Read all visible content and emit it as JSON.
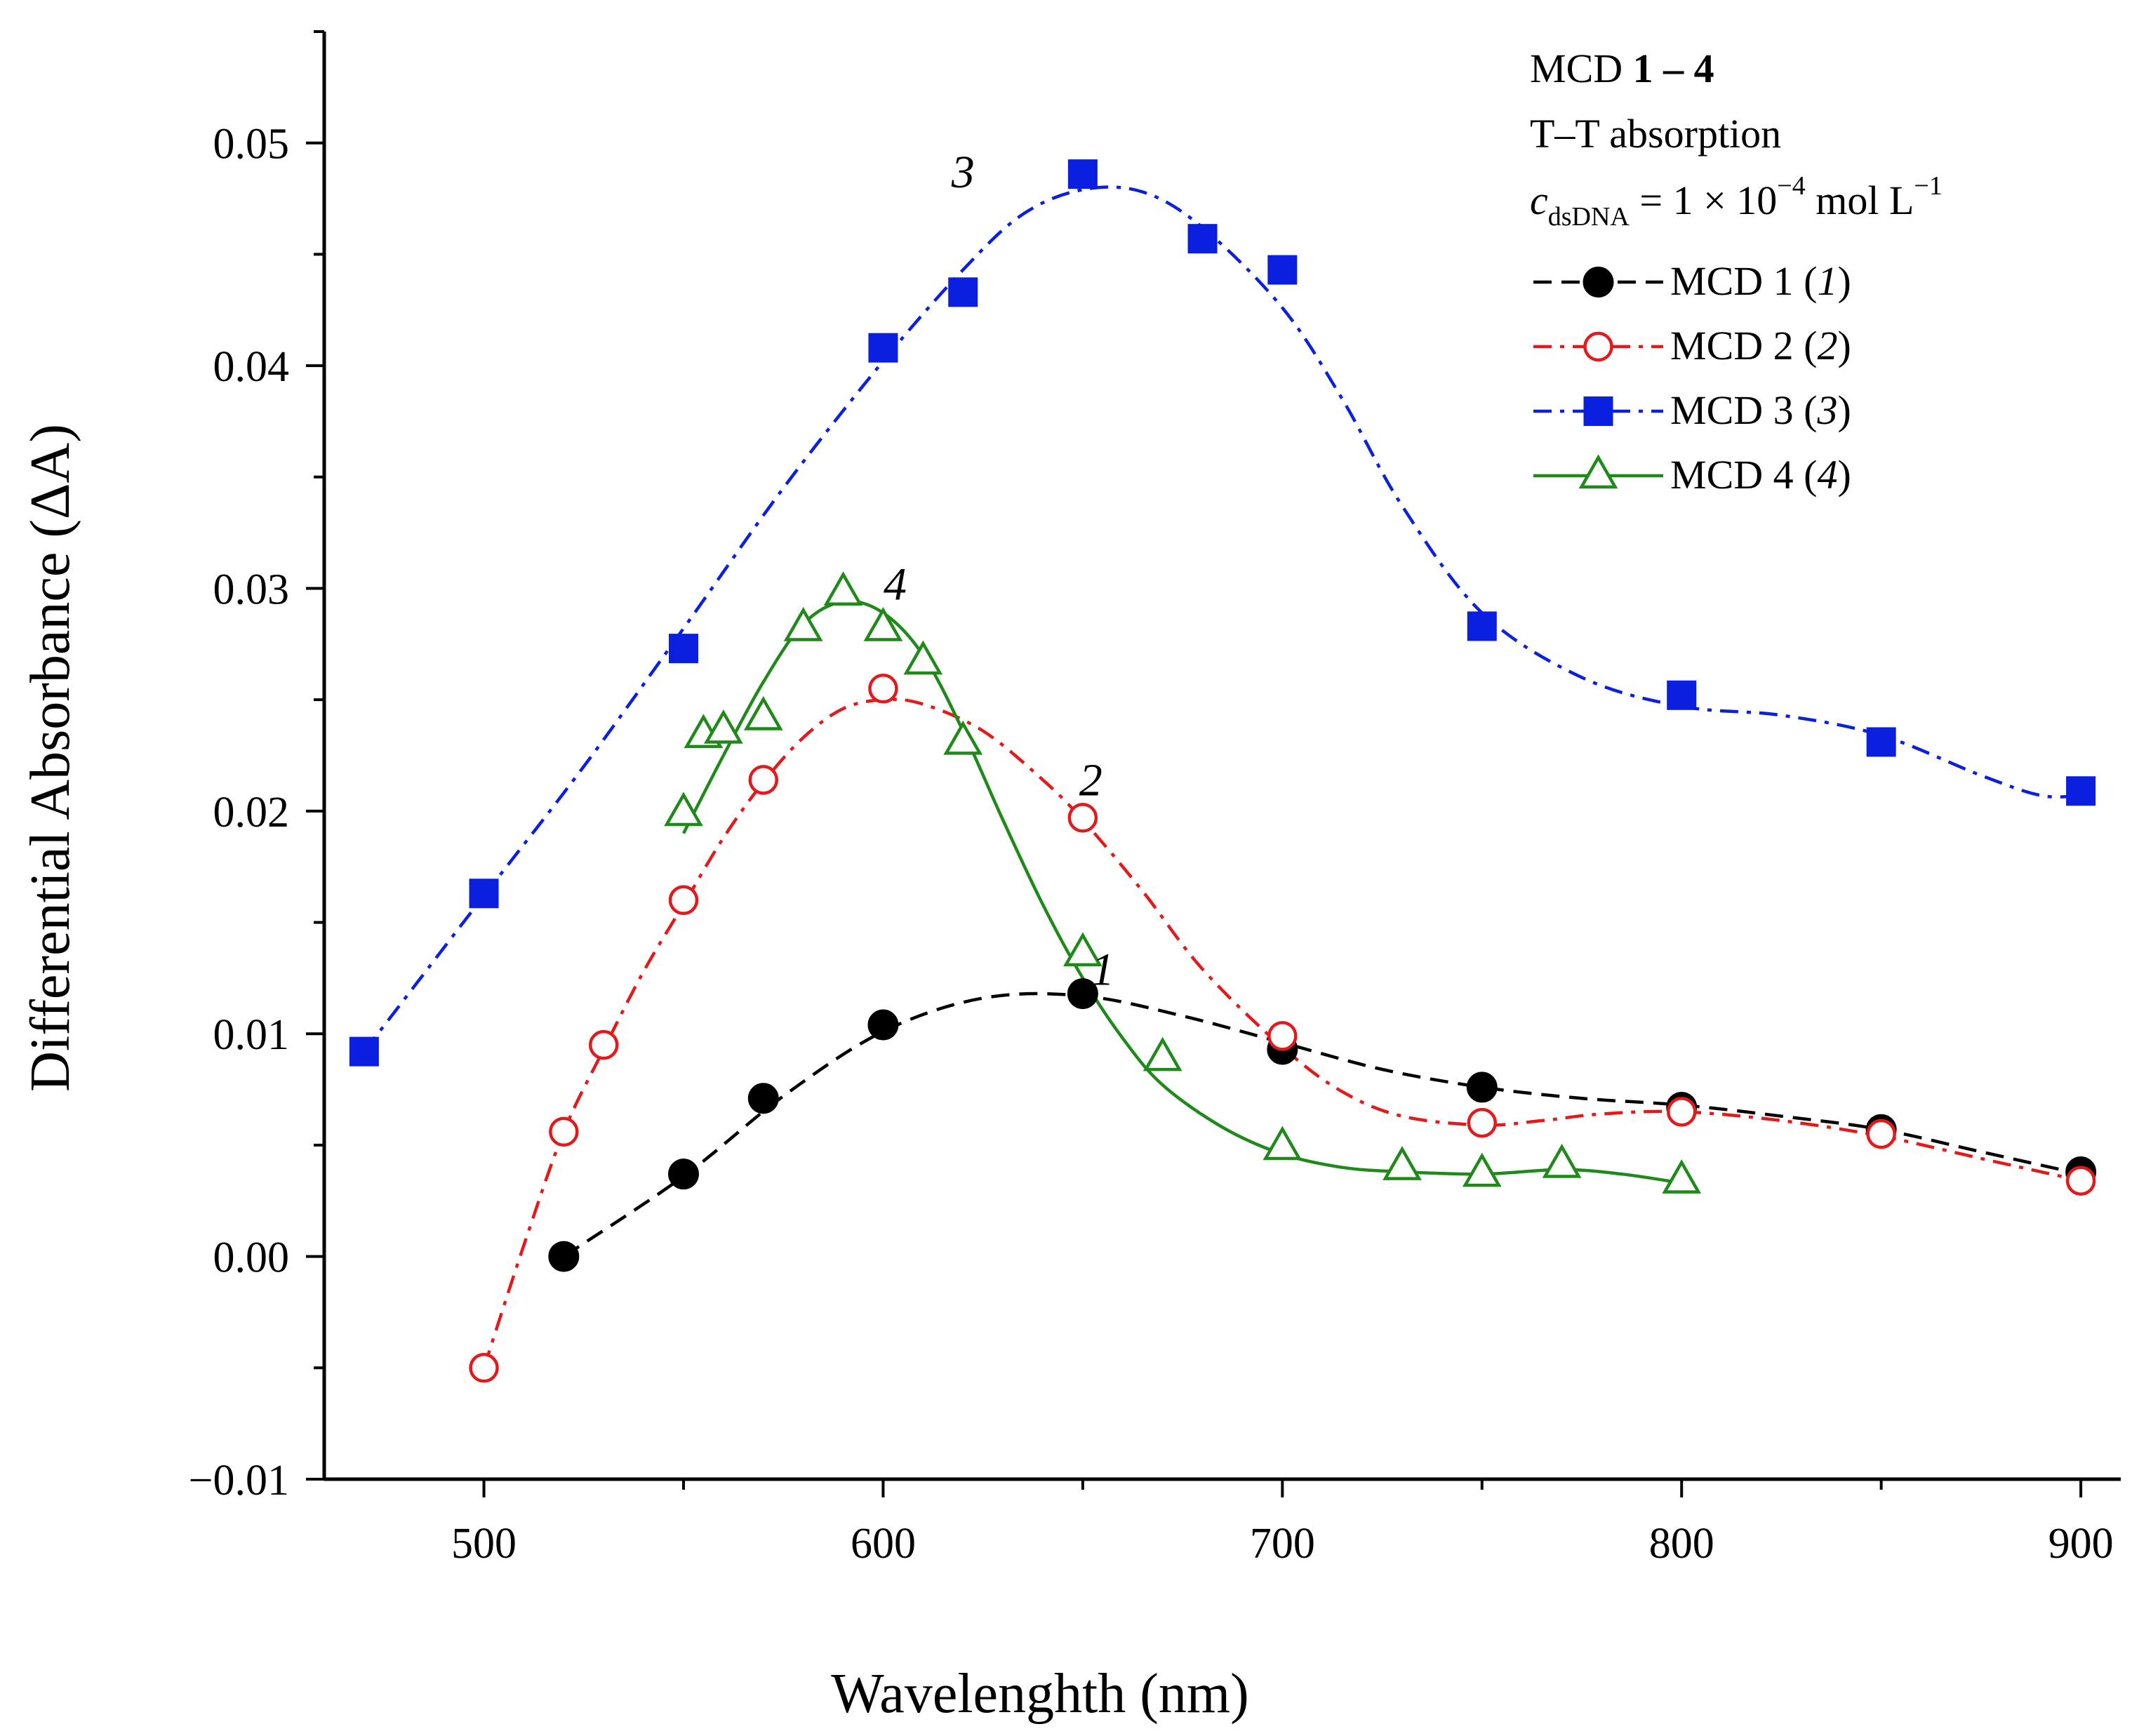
{
  "chart_data": {
    "type": "line",
    "title": "",
    "xlabel": "Wavelenghth (nm)",
    "ylabel": "Differential Absorbance (ΔA)",
    "xlim": [
      460,
      910
    ],
    "ylim": [
      -0.01,
      0.055
    ],
    "x_ticks": [
      500,
      600,
      700,
      800,
      900
    ],
    "x_tick_labels": [
      "500",
      "600",
      "700",
      "800",
      "900"
    ],
    "y_ticks": [
      -0.01,
      0.0,
      0.01,
      0.02,
      0.03,
      0.04,
      0.05
    ],
    "y_tick_labels": [
      "−0.01",
      "0.00",
      "0.01",
      "0.02",
      "0.03",
      "0.04",
      "0.05"
    ],
    "grid": false,
    "legend_position": "top-right",
    "legend_header": {
      "line1_prefix": "MCD ",
      "line1_bold": "1 – 4",
      "line2": "T–T absorption",
      "line3_c": "c",
      "line3_sub": "dsDNA",
      "line3_mid": " = 1 × 10",
      "line3_exp": "−4",
      "line3_unit": " mol L",
      "line3_unit_exp": "−1"
    },
    "series": [
      {
        "name": "MCD 1",
        "legend_name": "MCD 1 (",
        "legend_italic": "1",
        "legend_close": ")",
        "label": "1",
        "label_at": [
          655,
          0.0122
        ],
        "color": "#000000",
        "dash": "dashed",
        "marker": "filled-circle",
        "x": [
          520,
          550,
          570,
          600,
          650,
          700,
          750,
          800,
          850,
          900
        ],
        "y": [
          0.0,
          0.0037,
          0.0071,
          0.0104,
          0.0118,
          0.0093,
          0.0076,
          0.0067,
          0.0057,
          0.0038
        ],
        "curve": [
          [
            520,
            0.0
          ],
          [
            550,
            0.0036
          ],
          [
            575,
            0.0072
          ],
          [
            600,
            0.0101
          ],
          [
            625,
            0.0116
          ],
          [
            650,
            0.0117
          ],
          [
            675,
            0.0108
          ],
          [
            700,
            0.0096
          ],
          [
            725,
            0.0084
          ],
          [
            750,
            0.0076
          ],
          [
            775,
            0.0071
          ],
          [
            800,
            0.0068
          ],
          [
            825,
            0.0063
          ],
          [
            850,
            0.0057
          ],
          [
            875,
            0.0047
          ],
          [
            900,
            0.0037
          ]
        ]
      },
      {
        "name": "MCD 2",
        "legend_name": "MCD 2 (",
        "legend_italic": "2",
        "legend_close": ")",
        "label": "2",
        "label_at": [
          652,
          0.0207
        ],
        "color": "#e31a1c",
        "dash": "dashdot",
        "marker": "open-circle",
        "x": [
          500,
          520,
          530,
          550,
          570,
          600,
          650,
          700,
          750,
          800,
          850,
          900
        ],
        "y": [
          -0.005,
          0.0056,
          0.0095,
          0.016,
          0.0214,
          0.0255,
          0.0197,
          0.0099,
          0.006,
          0.0065,
          0.0055,
          0.0034
        ],
        "curve": [
          [
            500,
            -0.005
          ],
          [
            510,
            0.0005
          ],
          [
            520,
            0.0056
          ],
          [
            530,
            0.0093
          ],
          [
            540,
            0.0128
          ],
          [
            550,
            0.0158
          ],
          [
            560,
            0.0188
          ],
          [
            570,
            0.0213
          ],
          [
            580,
            0.0233
          ],
          [
            590,
            0.0246
          ],
          [
            600,
            0.025
          ],
          [
            610,
            0.0248
          ],
          [
            625,
            0.0236
          ],
          [
            640,
            0.0214
          ],
          [
            650,
            0.0196
          ],
          [
            665,
            0.0164
          ],
          [
            680,
            0.0129
          ],
          [
            700,
            0.0094
          ],
          [
            715,
            0.0074
          ],
          [
            730,
            0.0063
          ],
          [
            750,
            0.0059
          ],
          [
            765,
            0.0061
          ],
          [
            780,
            0.0064
          ],
          [
            800,
            0.0065
          ],
          [
            825,
            0.0061
          ],
          [
            850,
            0.0054
          ],
          [
            875,
            0.0044
          ],
          [
            900,
            0.0034
          ]
        ]
      },
      {
        "name": "MCD 3",
        "legend_name": "MCD 3 (",
        "legend_italic": "3",
        "legend_close": ")",
        "label": "3",
        "label_at": [
          620,
          0.048
        ],
        "color": "#0a1fe0",
        "dash": "dashdot",
        "marker": "filled-square",
        "x": [
          470,
          500,
          550,
          600,
          620,
          650,
          680,
          700,
          750,
          800,
          850,
          900
        ],
        "y": [
          0.0092,
          0.0163,
          0.0273,
          0.0408,
          0.0433,
          0.0486,
          0.0457,
          0.0443,
          0.0283,
          0.0252,
          0.0231,
          0.0209
        ],
        "curve": [
          [
            470,
            0.0092
          ],
          [
            485,
            0.0127
          ],
          [
            500,
            0.0162
          ],
          [
            525,
            0.022
          ],
          [
            550,
            0.0282
          ],
          [
            575,
            0.0345
          ],
          [
            600,
            0.0402
          ],
          [
            620,
            0.0443
          ],
          [
            635,
            0.0468
          ],
          [
            650,
            0.0479
          ],
          [
            665,
            0.0478
          ],
          [
            680,
            0.0462
          ],
          [
            700,
            0.0426
          ],
          [
            715,
            0.0385
          ],
          [
            730,
            0.0337
          ],
          [
            750,
            0.0289
          ],
          [
            775,
            0.026
          ],
          [
            800,
            0.0247
          ],
          [
            825,
            0.0243
          ],
          [
            850,
            0.0234
          ],
          [
            875,
            0.0216
          ],
          [
            890,
            0.0207
          ],
          [
            900,
            0.0207
          ]
        ]
      },
      {
        "name": "MCD 4",
        "legend_name": "MCD 4 (",
        "legend_italic": "4",
        "legend_close": ")",
        "label": "4",
        "label_at": [
          603,
          0.0295
        ],
        "color": "#1f8a1a",
        "dash": "solid",
        "marker": "open-triangle",
        "x": [
          550,
          555,
          560,
          570,
          580,
          590,
          600,
          610,
          620,
          650,
          670,
          700,
          730,
          750,
          770,
          800
        ],
        "y": [
          0.0199,
          0.0234,
          0.0236,
          0.0242,
          0.0282,
          0.0298,
          0.0282,
          0.0267,
          0.0231,
          0.0136,
          0.0089,
          0.0049,
          0.004,
          0.0037,
          0.0041,
          0.0034
        ],
        "curve": [
          [
            550,
            0.019
          ],
          [
            560,
            0.0225
          ],
          [
            570,
            0.0258
          ],
          [
            580,
            0.0284
          ],
          [
            590,
            0.0294
          ],
          [
            600,
            0.0289
          ],
          [
            610,
            0.027
          ],
          [
            620,
            0.0236
          ],
          [
            630,
            0.0196
          ],
          [
            640,
            0.0158
          ],
          [
            650,
            0.0125
          ],
          [
            660,
            0.0098
          ],
          [
            670,
            0.0077
          ],
          [
            685,
            0.0058
          ],
          [
            700,
            0.0046
          ],
          [
            715,
            0.004
          ],
          [
            730,
            0.0038
          ],
          [
            750,
            0.0037
          ],
          [
            770,
            0.0039
          ],
          [
            785,
            0.0037
          ],
          [
            800,
            0.0033
          ]
        ]
      }
    ]
  }
}
